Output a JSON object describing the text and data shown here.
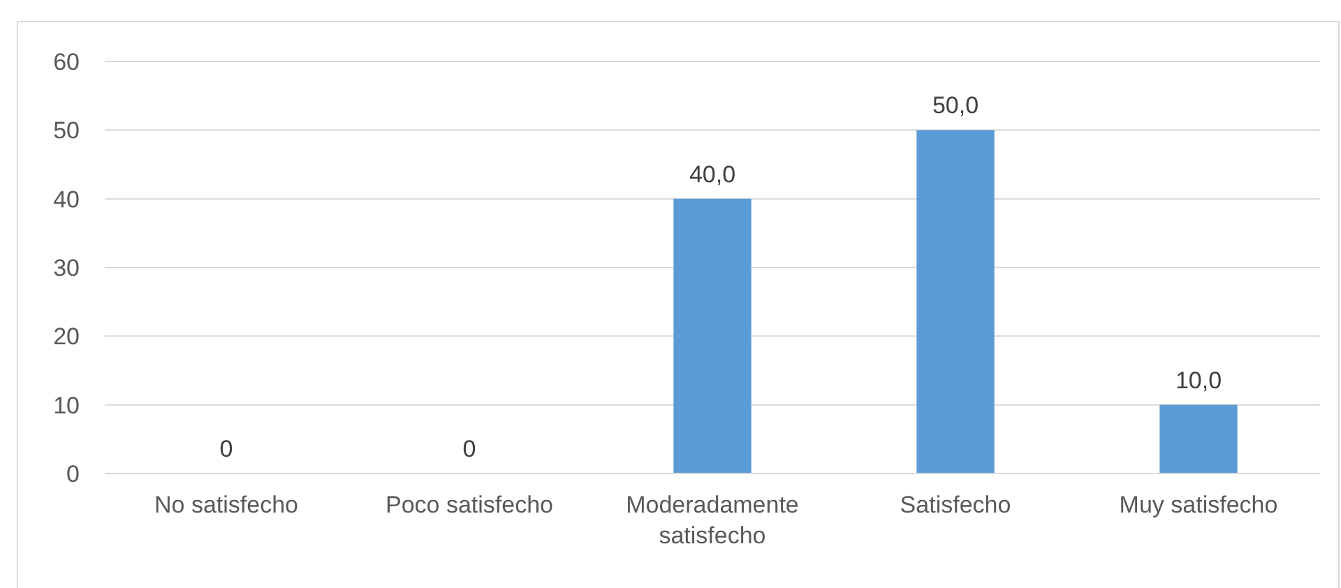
{
  "chart_data": {
    "type": "bar",
    "categories": [
      "No satisfecho",
      "Poco satisfecho",
      "Moderadamente satisfecho",
      "Satisfecho",
      "Muy satisfecho"
    ],
    "values": [
      0,
      0,
      40,
      50,
      10
    ],
    "value_labels": [
      "0",
      "0",
      "40,0",
      "50,0",
      "10,0"
    ],
    "color": "#5b9bd5",
    "ylim": [
      0,
      60
    ],
    "yticks": [
      0,
      10,
      20,
      30,
      40,
      50,
      60
    ],
    "grid": "y"
  }
}
